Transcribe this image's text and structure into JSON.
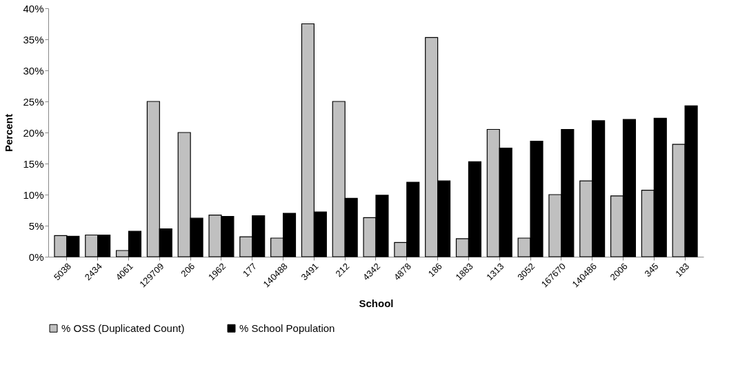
{
  "chart_data": {
    "type": "bar",
    "xlabel": "School",
    "ylabel": "Percent",
    "categories": [
      "5038",
      "2434",
      "4061",
      "129709",
      "206",
      "1962",
      "177",
      "140488",
      "3491",
      "212",
      "4342",
      "4878",
      "186",
      "1883",
      "1313",
      "3052",
      "167670",
      "140486",
      "2006",
      "345",
      "183"
    ],
    "series": [
      {
        "name": "% OSS (Duplicated Count)",
        "color": "#c0c0c0",
        "values": [
          3.4,
          3.5,
          1.0,
          25,
          20,
          6.7,
          3.2,
          3.0,
          37.5,
          25,
          6.3,
          2.3,
          35.3,
          2.9,
          20.5,
          3.0,
          10,
          12.2,
          9.8,
          10.7,
          18.1
        ]
      },
      {
        "name": "% School Population",
        "color": "#000000",
        "values": [
          3.3,
          3.5,
          4.1,
          4.5,
          6.2,
          6.5,
          6.6,
          7.0,
          7.2,
          9.4,
          9.9,
          12.0,
          12.2,
          15.3,
          17.5,
          18.6,
          20.5,
          21.9,
          22.1,
          22.3,
          24.3
        ]
      }
    ],
    "ylim": [
      0,
      40
    ],
    "yticks": [
      {
        "value": 0,
        "label": "0%"
      },
      {
        "value": 5,
        "label": "5%"
      },
      {
        "value": 10,
        "label": "10%"
      },
      {
        "value": 15,
        "label": "15%"
      },
      {
        "value": 20,
        "label": "20%"
      },
      {
        "value": 25,
        "label": "25%"
      },
      {
        "value": 30,
        "label": "30%"
      },
      {
        "value": 35,
        "label": "35%"
      },
      {
        "value": 40,
        "label": "40%"
      }
    ],
    "grid": false,
    "legend": "bottom"
  }
}
